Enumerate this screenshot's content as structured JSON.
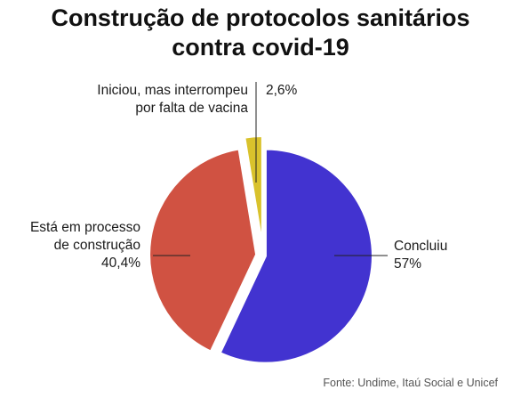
{
  "chart_data": {
    "type": "pie",
    "title_lines": [
      "Construção de protocolos sanitários",
      "contra covid-19"
    ],
    "slices": [
      {
        "label": "Concluiu",
        "label_lines": [
          "Concluiu"
        ],
        "value": 57,
        "value_label": "57%",
        "color": "#4233d0"
      },
      {
        "label": "Está em processo de construção",
        "label_lines": [
          "Está em processo",
          "de construção"
        ],
        "value": 40.4,
        "value_label": "40,4%",
        "color": "#d05242"
      },
      {
        "label": "Iniciou, mas interrompeu por falta de vacina",
        "label_lines": [
          "Iniciou, mas interrompeu",
          "por falta de vacina"
        ],
        "value": 2.6,
        "value_label": "2,6%",
        "color": "#d9c22c"
      }
    ],
    "source": "Fonte: Undime, Itaú Social e Unicef"
  }
}
